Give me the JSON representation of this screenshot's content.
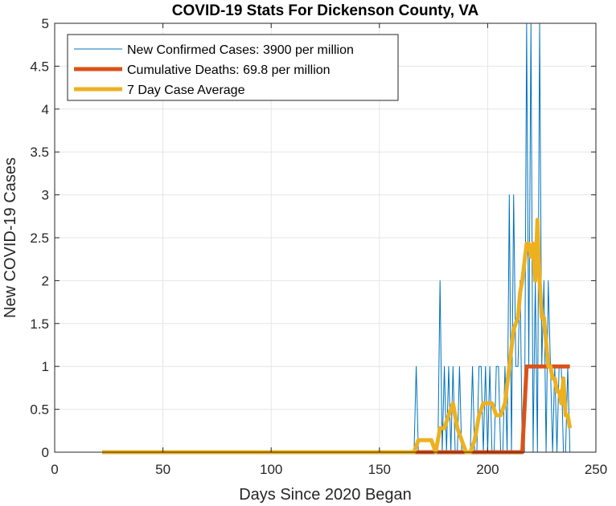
{
  "chart_data": {
    "type": "line",
    "title": "COVID-19 Stats For Dickenson County, VA",
    "xlabel": "Days Since 2020 Began",
    "ylabel": "New COVID-19 Cases",
    "xlim": [
      0,
      250
    ],
    "ylim": [
      0,
      5
    ],
    "grid": true,
    "legend_position": "top-left",
    "xticks": [
      0,
      50,
      100,
      150,
      200,
      250
    ],
    "xtick_labels": [
      "0",
      "50",
      "100",
      "150",
      "200",
      "250"
    ],
    "yticks": [
      0,
      0.5,
      1,
      1.5,
      2,
      2.5,
      3,
      3.5,
      4,
      4.5,
      5
    ],
    "ytick_labels": [
      "0",
      "0.5",
      "1",
      "1.5",
      "2",
      "2.5",
      "3",
      "3.5",
      "4",
      "4.5",
      "5"
    ],
    "series": [
      {
        "name": "New Confirmed Cases: 3900 per million",
        "color": "#0072bd",
        "width": "thin",
        "x": [
          22,
          166,
          167,
          168,
          176,
          177,
          178,
          179,
          180,
          181,
          182,
          183,
          184,
          185,
          186,
          187,
          188,
          189,
          190,
          191,
          192,
          193,
          194,
          195,
          196,
          197,
          198,
          199,
          200,
          201,
          202,
          203,
          204,
          205,
          206,
          207,
          208,
          209,
          210,
          211,
          212,
          213,
          214,
          215,
          216,
          217,
          218,
          219,
          220,
          221,
          222,
          223,
          224,
          225,
          226,
          227,
          228,
          229,
          230,
          231,
          232,
          233,
          234,
          235,
          236,
          237,
          238
        ],
        "values": [
          0,
          0,
          1,
          0,
          0,
          0,
          2,
          0,
          1,
          0,
          1,
          0,
          1,
          0,
          0,
          1,
          0,
          0,
          0,
          0,
          0,
          1,
          0,
          0,
          1,
          1,
          0,
          1,
          0,
          1,
          0,
          0,
          1,
          1,
          0,
          0,
          1,
          0,
          3,
          0,
          3,
          1,
          1,
          2,
          0,
          0,
          5,
          1,
          5,
          0,
          2,
          0,
          5,
          1,
          2,
          0,
          2,
          1,
          0,
          1,
          0,
          1,
          1,
          0,
          0,
          1,
          0
        ]
      },
      {
        "name": "Cumulative Deaths: 69.8 per million",
        "color": "#d95319",
        "width": "thick",
        "x": [
          22,
          216,
          217,
          218,
          238
        ],
        "values": [
          0,
          0,
          0.5,
          1,
          1
        ]
      },
      {
        "name": "7 Day Case Average",
        "color": "#edb120",
        "width": "thick",
        "x": [
          22,
          166,
          168,
          169,
          174,
          176,
          178,
          180,
          182,
          184,
          186,
          188,
          190,
          192,
          194,
          196,
          198,
          200,
          202,
          204,
          205,
          206,
          208,
          210,
          212,
          214,
          215,
          216,
          218,
          219,
          220,
          221,
          222,
          223,
          224,
          225,
          226,
          227,
          228,
          229,
          230,
          231,
          232,
          233,
          234,
          235,
          236,
          237,
          238
        ],
        "values": [
          0,
          0,
          0.14,
          0.14,
          0.14,
          0,
          0.28,
          0.28,
          0.43,
          0.57,
          0.28,
          0.14,
          0,
          0,
          0.14,
          0.43,
          0.57,
          0.57,
          0.57,
          0.43,
          0.43,
          0.43,
          0.57,
          1.0,
          1.43,
          1.57,
          1.86,
          2.0,
          2.43,
          2.43,
          2.28,
          2.43,
          2.0,
          2.71,
          2.0,
          1.57,
          1.57,
          1.29,
          1.0,
          1.0,
          0.86,
          0.86,
          0.71,
          0.71,
          0.57,
          0.86,
          0.43,
          0.43,
          0.28
        ]
      }
    ]
  }
}
